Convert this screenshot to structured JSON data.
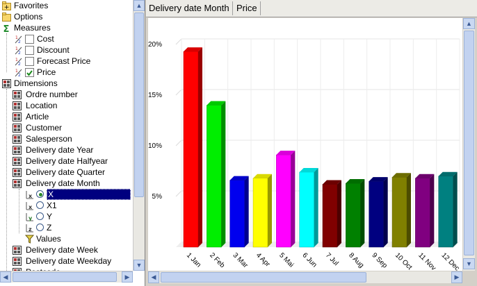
{
  "tree": {
    "favorites": "Favorites",
    "options": "Options",
    "measures": "Measures",
    "measure_items": [
      {
        "label": "Cost",
        "checked": false
      },
      {
        "label": "Discount",
        "checked": false
      },
      {
        "label": "Forecast Price",
        "checked": false
      },
      {
        "label": "Price",
        "checked": true
      }
    ],
    "dimensions": "Dimensions",
    "dimension_items": [
      "Ordre number",
      "Location",
      "Article",
      "Customer",
      "Salesperson",
      "Delivery date Year",
      "Delivery date Halfyear",
      "Delivery date Quarter",
      "Delivery date Month"
    ],
    "axis_items": [
      {
        "tag": "X",
        "label": "X",
        "selected": true
      },
      {
        "tag": "X1",
        "label": "X1",
        "selected": false
      },
      {
        "tag": "Y",
        "label": "Y",
        "selected": false
      },
      {
        "tag": "Z",
        "label": "Z",
        "selected": false
      }
    ],
    "values_label": "Values",
    "dimension_items_after": [
      "Delivery date Week",
      "Delivery date Weekday",
      "Postcode"
    ]
  },
  "tabs": [
    "Delivery date Month",
    "Price"
  ],
  "chart_data": {
    "type": "bar",
    "categories": [
      "1 Jan",
      "2 Feb",
      "3 Mar",
      "4 Apr",
      "5 Mai",
      "6 Jun",
      "7 Jul",
      "8 Aug",
      "9 Sep",
      "10 Oct",
      "11 Nov",
      "12 Dec"
    ],
    "values": [
      19.3,
      14.0,
      6.6,
      6.8,
      9.1,
      7.4,
      6.2,
      6.3,
      6.5,
      6.9,
      6.8,
      7.0
    ],
    "colors": [
      "#ff0000",
      "#00ee00",
      "#0000ee",
      "#ffff00",
      "#ff00ff",
      "#00ffff",
      "#800000",
      "#008000",
      "#000080",
      "#808000",
      "#800080",
      "#008080"
    ],
    "yticks": [
      "5%",
      "10%",
      "15%",
      "20%"
    ],
    "ylim": [
      0,
      20
    ],
    "xlabel": "",
    "ylabel": "",
    "grid": true
  }
}
